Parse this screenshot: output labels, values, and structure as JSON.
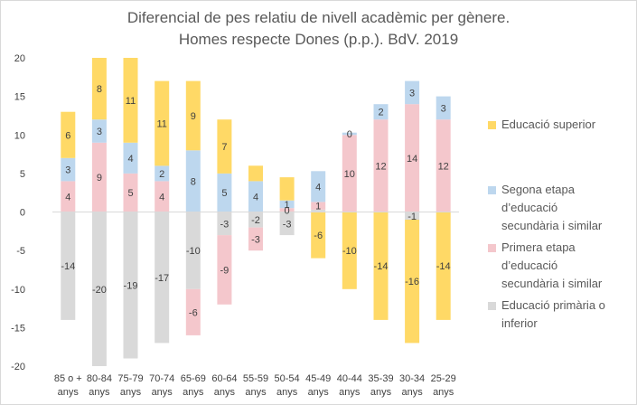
{
  "chart_data": {
    "type": "bar",
    "stacked": true,
    "title": "Diferencial de pes relatiu de nivell acadèmic per gènere.",
    "subtitle": "Homes respecte Dones (p.p.). BdV. 2019",
    "categories": [
      [
        "85 o +",
        "anys"
      ],
      [
        "80-84",
        "anys"
      ],
      [
        "75-79",
        "anys"
      ],
      [
        "70-74",
        "anys"
      ],
      [
        "65-69",
        "anys"
      ],
      [
        "60-64",
        "anys"
      ],
      [
        "55-59",
        "anys"
      ],
      [
        "50-54",
        "anys"
      ],
      [
        "45-49",
        "anys"
      ],
      [
        "40-44",
        "anys"
      ],
      [
        "35-39",
        "anys"
      ],
      [
        "30-34",
        "anys"
      ],
      [
        "25-29",
        "anys"
      ]
    ],
    "series": [
      {
        "name": "Educació primària o inferior",
        "color": "#d9d9d9",
        "values": [
          -14,
          -20,
          -19,
          -17,
          -10,
          -3,
          -2,
          -3,
          0.3,
          0,
          0,
          -1,
          0
        ],
        "labels": [
          "-14",
          "-20",
          "-19",
          "-17",
          "-10",
          "-3",
          "-2",
          "-3",
          "",
          "",
          "",
          "-1",
          ""
        ]
      },
      {
        "name": "Primera etapa d’educació secundària i similar",
        "color": "#f4c7cc",
        "values": [
          4,
          9,
          5,
          4,
          -6,
          -9,
          -3,
          0.5,
          1,
          10,
          12,
          14,
          12
        ],
        "labels": [
          "4",
          "9",
          "5",
          "4",
          "-6",
          "-9",
          "-3",
          "0",
          "1",
          "10",
          "12",
          "14",
          "12"
        ]
      },
      {
        "name": "Segona etapa d’educació secundària i similar",
        "color": "#bdd7ee",
        "values": [
          3,
          3,
          4,
          2,
          8,
          5,
          4,
          1,
          4,
          0.3,
          2,
          3,
          3
        ],
        "labels": [
          "3",
          "3",
          "4",
          "2",
          "8",
          "5",
          "4",
          "1",
          "4",
          "0",
          "2",
          "3",
          "3"
        ]
      },
      {
        "name": "Educació superior",
        "color": "#ffd966",
        "values": [
          6,
          8,
          11,
          11,
          9,
          7,
          2,
          3,
          -6,
          -10,
          -14,
          -16,
          -14
        ],
        "labels": [
          "6",
          "8",
          "11",
          "11",
          "9",
          "7",
          "",
          "",
          "-6",
          "-10",
          "-14",
          "-16",
          "-14"
        ]
      }
    ],
    "ylim": [
      -20,
      20
    ],
    "yticks": [
      -20,
      -15,
      -10,
      -5,
      0,
      5,
      10,
      15,
      20
    ],
    "grid": false,
    "legend_position": "right",
    "legend_order": [
      "Educació superior",
      "Segona etapa d’educació secundària i similar",
      "Primera etapa d’educació secundària i similar",
      "Educació primària o inferior"
    ]
  },
  "legend": [
    {
      "lines": [
        "Educació superior"
      ],
      "color": "#ffd966"
    },
    {
      "lines": [
        "Segona etapa",
        "d’educació",
        "secundària i similar"
      ],
      "color": "#bdd7ee"
    },
    {
      "lines": [
        "Primera etapa",
        "d’educació",
        "secundària i similar"
      ],
      "color": "#f4c7cc"
    },
    {
      "lines": [
        "Educació primària o",
        "inferior"
      ],
      "color": "#d9d9d9"
    }
  ]
}
